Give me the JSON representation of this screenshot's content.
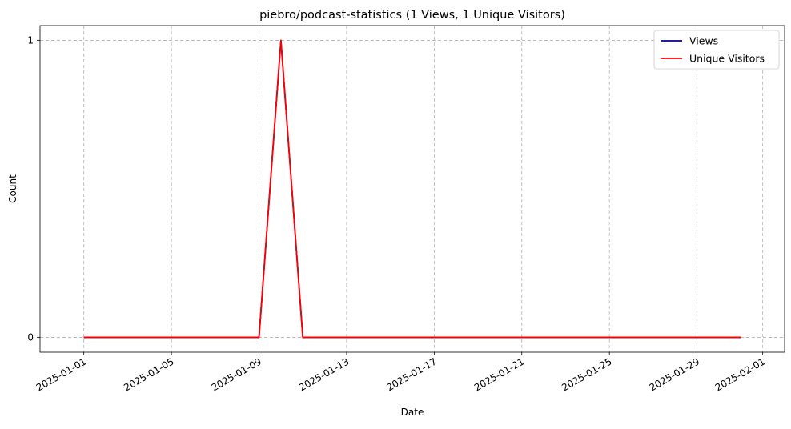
{
  "chart_data": {
    "type": "line",
    "title": "piebro/podcast-statistics (1 Views, 1 Unique Visitors)",
    "xlabel": "Date",
    "ylabel": "Count",
    "x": [
      "2025-01-01",
      "2025-01-02",
      "2025-01-03",
      "2025-01-04",
      "2025-01-05",
      "2025-01-06",
      "2025-01-07",
      "2025-01-08",
      "2025-01-09",
      "2025-01-10",
      "2025-01-11",
      "2025-01-12",
      "2025-01-13",
      "2025-01-14",
      "2025-01-15",
      "2025-01-16",
      "2025-01-17",
      "2025-01-18",
      "2025-01-19",
      "2025-01-20",
      "2025-01-21",
      "2025-01-22",
      "2025-01-23",
      "2025-01-24",
      "2025-01-25",
      "2025-01-26",
      "2025-01-27",
      "2025-01-28",
      "2025-01-29",
      "2025-01-30",
      "2025-01-31"
    ],
    "series": [
      {
        "name": "Views",
        "color": "#00008b",
        "values": [
          0,
          0,
          0,
          0,
          0,
          0,
          0,
          0,
          0,
          1,
          0,
          0,
          0,
          0,
          0,
          0,
          0,
          0,
          0,
          0,
          0,
          0,
          0,
          0,
          0,
          0,
          0,
          0,
          0,
          0,
          0
        ]
      },
      {
        "name": "Unique Visitors",
        "color": "#ff0000",
        "values": [
          0,
          0,
          0,
          0,
          0,
          0,
          0,
          0,
          0,
          1,
          0,
          0,
          0,
          0,
          0,
          0,
          0,
          0,
          0,
          0,
          0,
          0,
          0,
          0,
          0,
          0,
          0,
          0,
          0,
          0,
          0
        ]
      }
    ],
    "x_ticks": [
      "2025-01-01",
      "2025-01-05",
      "2025-01-09",
      "2025-01-13",
      "2025-01-17",
      "2025-01-21",
      "2025-01-25",
      "2025-01-29",
      "2025-02-01"
    ],
    "y_ticks": [
      0,
      1
    ],
    "xlim": [
      "2024-12-30",
      "2025-02-02"
    ],
    "ylim": [
      -0.05,
      1.05
    ],
    "grid": true,
    "legend_position": "top-right"
  }
}
